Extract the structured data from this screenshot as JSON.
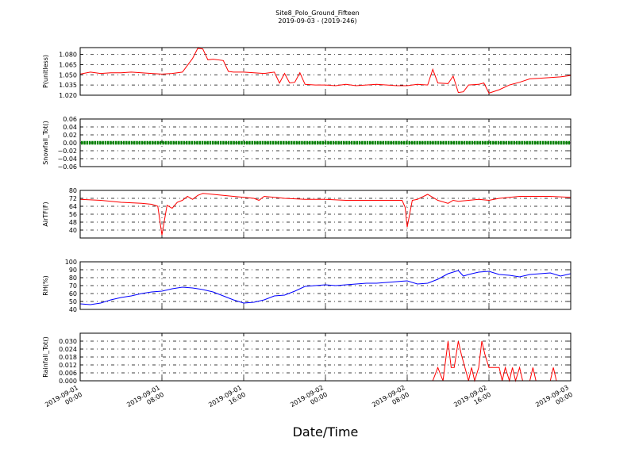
{
  "figure": {
    "title": "Site8_Polo_Ground_Fifteen",
    "subtitle": "2019-09-03 - (2019-246)",
    "xlabel": "Date/Time"
  },
  "x_ticks": [
    {
      "hour": 0,
      "line1": "2019-09-01",
      "line2": "00:00"
    },
    {
      "hour": 8,
      "line1": "2019-09-01",
      "line2": "08:00"
    },
    {
      "hour": 16,
      "line1": "2019-09-01",
      "line2": "16:00"
    },
    {
      "hour": 24,
      "line1": "2019-09-02",
      "line2": "00:00"
    },
    {
      "hour": 32,
      "line1": "2019-09-02",
      "line2": "08:00"
    },
    {
      "hour": 40,
      "line1": "2019-09-02",
      "line2": "16:00"
    },
    {
      "hour": 48,
      "line1": "2019-09-03",
      "line2": "00:00"
    }
  ],
  "chart_data": [
    {
      "type": "line",
      "ylabel": "P(unitless)",
      "ylim": [
        1.02,
        1.09
      ],
      "yticks": [
        "1.020",
        "1.035",
        "1.050",
        "1.065",
        "1.080"
      ],
      "color": "#ff0000",
      "x_range_hours": [
        0,
        48
      ],
      "points": [
        [
          0,
          1.051
        ],
        [
          1,
          1.054
        ],
        [
          2,
          1.052
        ],
        [
          3,
          1.053
        ],
        [
          4,
          1.053
        ],
        [
          5,
          1.054
        ],
        [
          6,
          1.053
        ],
        [
          7,
          1.052
        ],
        [
          8,
          1.051
        ],
        [
          9,
          1.052
        ],
        [
          10,
          1.054
        ],
        [
          11,
          1.074
        ],
        [
          11.5,
          1.089
        ],
        [
          12,
          1.088
        ],
        [
          12.5,
          1.072
        ],
        [
          13,
          1.073
        ],
        [
          14,
          1.071
        ],
        [
          14.5,
          1.055
        ],
        [
          15,
          1.054
        ],
        [
          16,
          1.054
        ],
        [
          17,
          1.053
        ],
        [
          18,
          1.052
        ],
        [
          19,
          1.054
        ],
        [
          19.5,
          1.038
        ],
        [
          20,
          1.052
        ],
        [
          20.5,
          1.038
        ],
        [
          21,
          1.039
        ],
        [
          21.5,
          1.053
        ],
        [
          22,
          1.036
        ],
        [
          23,
          1.035
        ],
        [
          24,
          1.035
        ],
        [
          25,
          1.034
        ],
        [
          26,
          1.036
        ],
        [
          27,
          1.034
        ],
        [
          28,
          1.035
        ],
        [
          29,
          1.036
        ],
        [
          30,
          1.035
        ],
        [
          31,
          1.034
        ],
        [
          32,
          1.034
        ],
        [
          33,
          1.036
        ],
        [
          34,
          1.035
        ],
        [
          34.5,
          1.058
        ],
        [
          35,
          1.038
        ],
        [
          36,
          1.037
        ],
        [
          36.5,
          1.048
        ],
        [
          37,
          1.024
        ],
        [
          37.5,
          1.025
        ],
        [
          38,
          1.035
        ],
        [
          39,
          1.036
        ],
        [
          39.5,
          1.038
        ],
        [
          40,
          1.023
        ],
        [
          41,
          1.028
        ],
        [
          42,
          1.035
        ],
        [
          43,
          1.039
        ],
        [
          44,
          1.044
        ],
        [
          45,
          1.045
        ],
        [
          46,
          1.046
        ],
        [
          47,
          1.047
        ],
        [
          48,
          1.049
        ]
      ]
    },
    {
      "type": "scatter",
      "ylabel": "Snowfall_Tot()",
      "ylim": [
        -0.06,
        0.06
      ],
      "yticks": [
        "−0.06",
        "−0.04",
        "−0.02",
        "0.00",
        "0.02",
        "0.04",
        "0.06"
      ],
      "color": "#008000",
      "x_range_hours": [
        0,
        48
      ],
      "constant_value": 0.0
    },
    {
      "type": "line",
      "ylabel": "AirTF(F)",
      "ylim": [
        32,
        80
      ],
      "yticks": [
        "40",
        "48",
        "56",
        "64",
        "72",
        "80"
      ],
      "color": "#ff0000",
      "x_range_hours": [
        0,
        48
      ],
      "points": [
        [
          0,
          71
        ],
        [
          2,
          70
        ],
        [
          4,
          68
        ],
        [
          6,
          67
        ],
        [
          7,
          66
        ],
        [
          7.6,
          64
        ],
        [
          8,
          35
        ],
        [
          8.5,
          65
        ],
        [
          9,
          62
        ],
        [
          9.5,
          68
        ],
        [
          10,
          70
        ],
        [
          10.5,
          74
        ],
        [
          11,
          71
        ],
        [
          11.5,
          75
        ],
        [
          12,
          77
        ],
        [
          13,
          76
        ],
        [
          14,
          75
        ],
        [
          15,
          74
        ],
        [
          16,
          73
        ],
        [
          17,
          72
        ],
        [
          17.5,
          70
        ],
        [
          18,
          74
        ],
        [
          19,
          73
        ],
        [
          20,
          72
        ],
        [
          22,
          71
        ],
        [
          24,
          71
        ],
        [
          26,
          70
        ],
        [
          28,
          70
        ],
        [
          30,
          70
        ],
        [
          31.5,
          70
        ],
        [
          31.8,
          63
        ],
        [
          32,
          43
        ],
        [
          32.5,
          70
        ],
        [
          33,
          71
        ],
        [
          34,
          76
        ],
        [
          35,
          70
        ],
        [
          36,
          67
        ],
        [
          36.5,
          70
        ],
        [
          37,
          69
        ],
        [
          38,
          70
        ],
        [
          39,
          71
        ],
        [
          40,
          70
        ],
        [
          41,
          72
        ],
        [
          42,
          73
        ],
        [
          43,
          74
        ],
        [
          44,
          74
        ],
        [
          46,
          74
        ],
        [
          48,
          73
        ]
      ]
    },
    {
      "type": "line",
      "ylabel": "RH(%)",
      "ylim": [
        40,
        100
      ],
      "yticks": [
        "40",
        "50",
        "60",
        "70",
        "80",
        "90",
        "100"
      ],
      "color": "#0000ff",
      "x_range_hours": [
        0,
        48
      ],
      "points": [
        [
          0,
          47
        ],
        [
          1,
          46
        ],
        [
          2,
          48
        ],
        [
          3,
          52
        ],
        [
          4,
          55
        ],
        [
          5,
          57
        ],
        [
          6,
          60
        ],
        [
          7,
          62
        ],
        [
          8,
          63
        ],
        [
          9,
          66
        ],
        [
          10,
          68
        ],
        [
          11,
          67
        ],
        [
          12,
          65
        ],
        [
          13,
          62
        ],
        [
          14,
          57
        ],
        [
          15,
          52
        ],
        [
          16,
          48
        ],
        [
          17,
          49
        ],
        [
          18,
          52
        ],
        [
          19,
          57
        ],
        [
          20,
          58
        ],
        [
          21,
          63
        ],
        [
          22,
          69
        ],
        [
          23,
          70
        ],
        [
          24,
          71
        ],
        [
          25,
          70
        ],
        [
          26,
          71
        ],
        [
          27,
          72
        ],
        [
          28,
          73
        ],
        [
          29,
          73
        ],
        [
          30,
          74
        ],
        [
          31,
          75
        ],
        [
          32,
          76
        ],
        [
          33,
          72
        ],
        [
          34,
          73
        ],
        [
          35,
          78
        ],
        [
          36,
          85
        ],
        [
          37,
          89
        ],
        [
          37.5,
          82
        ],
        [
          38,
          84
        ],
        [
          39,
          87
        ],
        [
          40,
          88
        ],
        [
          41,
          84
        ],
        [
          42,
          83
        ],
        [
          43,
          81
        ],
        [
          44,
          84
        ],
        [
          45,
          85
        ],
        [
          46,
          86
        ],
        [
          47,
          82
        ],
        [
          48,
          85
        ]
      ]
    },
    {
      "type": "line",
      "ylabel": "Rainfall_Tot()",
      "ylim": [
        0,
        0.036
      ],
      "yticks": [
        "0.000",
        "0.006",
        "0.012",
        "0.018",
        "0.024",
        "0.030"
      ],
      "color": "#ff0000",
      "x_range_hours": [
        0,
        48
      ],
      "points": [
        [
          0,
          0
        ],
        [
          34.5,
          0
        ],
        [
          35,
          0.01
        ],
        [
          35.5,
          0
        ],
        [
          36,
          0.03
        ],
        [
          36.3,
          0.01
        ],
        [
          36.6,
          0.01
        ],
        [
          37,
          0.03
        ],
        [
          37.3,
          0.02
        ],
        [
          38,
          0
        ],
        [
          38.3,
          0.01
        ],
        [
          38.6,
          0
        ],
        [
          39,
          0.01
        ],
        [
          39.3,
          0.03
        ],
        [
          39.6,
          0.02
        ],
        [
          40,
          0.01
        ],
        [
          41,
          0.01
        ],
        [
          41.3,
          0
        ],
        [
          41.6,
          0.01
        ],
        [
          42,
          0
        ],
        [
          42.3,
          0.01
        ],
        [
          42.6,
          0
        ],
        [
          43,
          0.01
        ],
        [
          43.3,
          0
        ],
        [
          44,
          0
        ],
        [
          44.3,
          0.01
        ],
        [
          44.6,
          0
        ],
        [
          46,
          0
        ],
        [
          46.3,
          0.01
        ],
        [
          46.6,
          0
        ],
        [
          48,
          0
        ]
      ]
    }
  ]
}
